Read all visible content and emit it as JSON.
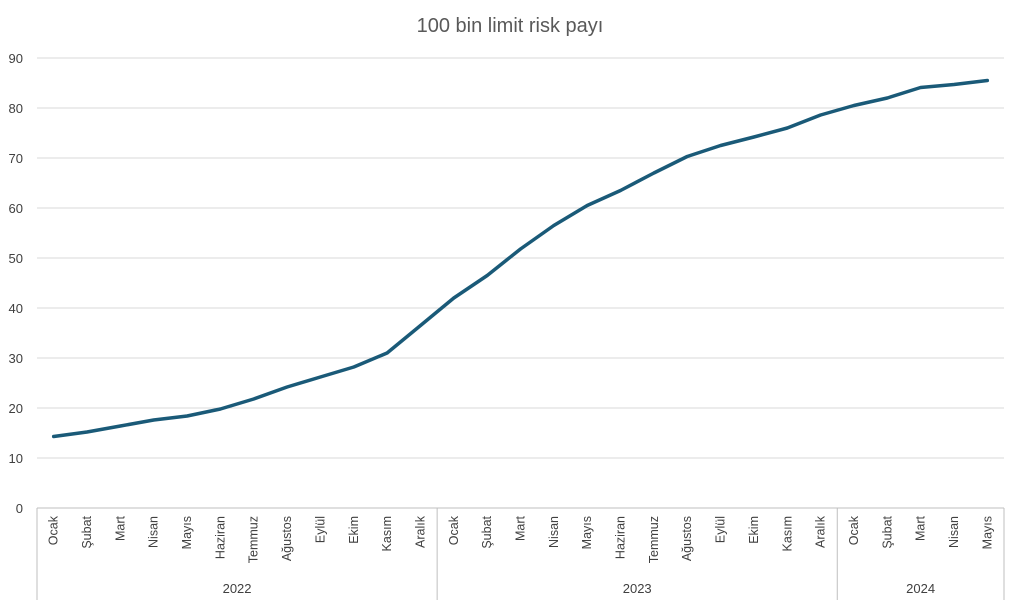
{
  "chart_data": {
    "type": "line",
    "title": "100 bin limit risk payı",
    "xlabel": "",
    "ylabel": "",
    "ylim": [
      0,
      90
    ],
    "yticks": [
      0,
      10,
      20,
      30,
      40,
      50,
      60,
      70,
      80,
      90
    ],
    "grid": true,
    "legend": "none",
    "years": [
      {
        "label": "2022",
        "months": 12
      },
      {
        "label": "2023",
        "months": 12
      },
      {
        "label": "2024",
        "months": 5
      }
    ],
    "categories": [
      "Ocak",
      "Şubat",
      "Mart",
      "Nisan",
      "Mayıs",
      "Haziran",
      "Temmuz",
      "Ağustos",
      "Eylül",
      "Ekim",
      "Kasım",
      "Aralık",
      "Ocak",
      "Şubat",
      "Mart",
      "Nisan",
      "Mayıs",
      "Haziran",
      "Temmuz",
      "Ağustos",
      "Eylül",
      "Ekim",
      "Kasım",
      "Aralık",
      "Ocak",
      "Şubat",
      "Mart",
      "Nisan",
      "Mayıs"
    ],
    "series": [
      {
        "color": "#1a5a78",
        "values": [
          14.3,
          15.2,
          16.4,
          17.6,
          18.4,
          19.8,
          21.8,
          24.2,
          26.2,
          28.2,
          31.0,
          36.5,
          42.0,
          46.5,
          51.8,
          56.5,
          60.5,
          63.5,
          67.0,
          70.3,
          72.5,
          74.2,
          76.0,
          78.6,
          80.5,
          82.0,
          84.1,
          84.7,
          85.5
        ]
      }
    ]
  }
}
